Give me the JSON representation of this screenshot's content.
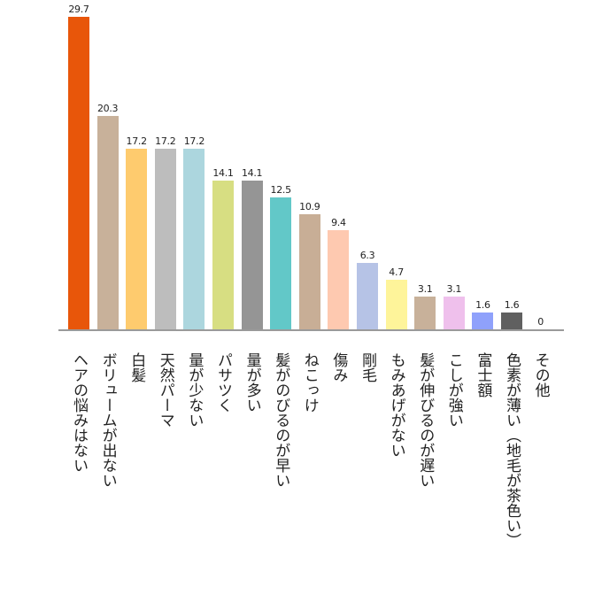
{
  "chart_data": {
    "type": "bar",
    "title": "",
    "xlabel": "",
    "ylabel": "",
    "ylim": [
      0,
      30
    ],
    "grid": false,
    "legend": null,
    "categories": [
      "ヘアの悩みはない",
      "ボリュームが出ない",
      "白髪",
      "天然パーマ",
      "量が少ない",
      "パサツく",
      "量が多い",
      "髪がのびるのが早い",
      "ねこっけ",
      "傷み",
      "剛毛",
      "もみあげがない",
      "髪が伸びるのが遅い",
      "こしが強い",
      "富士額",
      "色素が薄い（地毛が茶色い）",
      "その他"
    ],
    "values": [
      29.7,
      20.3,
      17.2,
      17.2,
      17.2,
      14.1,
      14.1,
      12.5,
      10.9,
      9.4,
      6.3,
      4.7,
      3.1,
      3.1,
      1.6,
      1.6,
      0
    ],
    "value_labels": [
      "29.7",
      "20.3",
      "17.2",
      "17.2",
      "17.2",
      "14.1",
      "14.1",
      "12.5",
      "10.9",
      "9.4",
      "6.3",
      "4.7",
      "3.1",
      "3.1",
      "1.6",
      "1.6",
      "0"
    ],
    "colors": [
      "#e8560a",
      "#c8b19a",
      "#fecb6e",
      "#bdbdbd",
      "#acd6de",
      "#d7de82",
      "#959595",
      "#62c8c8",
      "#c8ae96",
      "#fec9b0",
      "#b6c3e6",
      "#fef49a",
      "#c8b19a",
      "#efc0ec",
      "#8fa1fb",
      "#606060",
      "#ffffff"
    ]
  }
}
